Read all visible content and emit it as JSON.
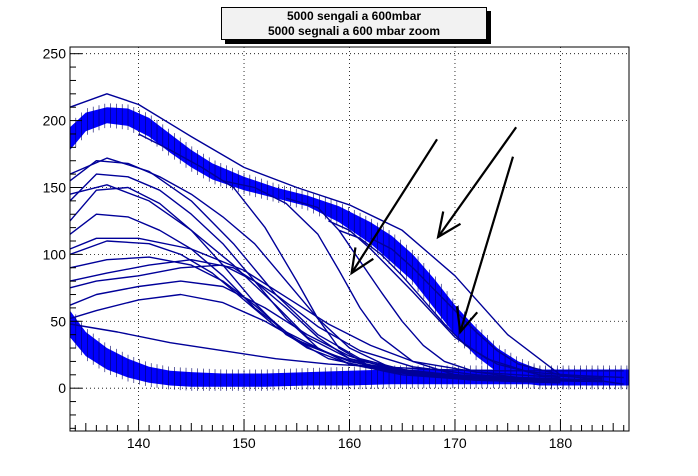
{
  "chart_data": {
    "type": "line",
    "title_lines": [
      "5000 sengali a 600mbar",
      "5000 segnali a 600 mbar zoom"
    ],
    "xlabel": "",
    "ylabel": "",
    "xlim": [
      133.5,
      186.5
    ],
    "ylim": [
      -32,
      255
    ],
    "x_ticks": [
      140,
      150,
      160,
      170,
      180
    ],
    "y_ticks": [
      0,
      50,
      100,
      150,
      200,
      250
    ],
    "grid": true,
    "line_color": "#000099",
    "band_color": "#0000ff",
    "arrow_color": "#000000",
    "bands": [
      {
        "x": [
          133.5,
          135,
          137,
          139,
          141,
          143,
          145,
          147,
          150,
          153,
          156,
          159,
          162,
          164,
          166,
          168,
          170,
          172,
          174,
          176,
          178,
          180,
          182,
          184,
          186.5
        ],
        "upper": [
          195,
          206,
          210,
          209,
          202,
          190,
          178,
          168,
          158,
          150,
          144,
          136,
          124,
          114,
          100,
          82,
          62,
          45,
          30,
          20,
          14,
          12,
          12,
          12,
          12
        ],
        "lower": [
          178,
          192,
          198,
          196,
          188,
          176,
          165,
          156,
          148,
          142,
          136,
          124,
          108,
          94,
          80,
          60,
          40,
          24,
          12,
          4,
          2,
          2,
          2,
          2,
          2
        ]
      },
      {
        "x": [
          133.5,
          135,
          137,
          139,
          141,
          143,
          145,
          148,
          152,
          156,
          160,
          164,
          168,
          172,
          176,
          180,
          186.5
        ],
        "upper": [
          58,
          42,
          30,
          22,
          16,
          13,
          12,
          11,
          11,
          12,
          13,
          14,
          14,
          14,
          14,
          14,
          14
        ],
        "lower": [
          38,
          24,
          14,
          8,
          4,
          2,
          1,
          1,
          1,
          2,
          2,
          3,
          3,
          3,
          3,
          3,
          3
        ]
      }
    ],
    "series": [
      {
        "x": [
          133.5,
          137,
          140,
          145,
          150,
          155,
          160,
          165,
          170,
          175,
          180,
          186
        ],
        "y": [
          210,
          220,
          212,
          188,
          165,
          150,
          137,
          118,
          84,
          40,
          10,
          3
        ]
      },
      {
        "x": [
          133.5,
          136,
          139,
          142,
          145,
          148,
          151,
          154,
          157,
          160,
          164,
          170,
          180
        ],
        "y": [
          155,
          170,
          168,
          158,
          145,
          128,
          108,
          80,
          52,
          30,
          15,
          8,
          4
        ]
      },
      {
        "x": [
          133.5,
          136,
          139,
          142,
          145,
          148,
          151,
          154,
          157,
          160,
          165,
          172,
          180
        ],
        "y": [
          140,
          160,
          158,
          148,
          130,
          108,
          80,
          52,
          30,
          18,
          10,
          6,
          4
        ]
      },
      {
        "x": [
          133.5,
          136,
          139,
          142,
          145,
          148,
          151,
          154,
          158,
          164,
          172,
          180
        ],
        "y": [
          125,
          148,
          150,
          138,
          118,
          92,
          64,
          40,
          22,
          12,
          6,
          4
        ]
      },
      {
        "x": [
          133.5,
          136,
          139,
          142,
          145,
          148,
          151,
          155,
          160,
          166,
          174,
          182
        ],
        "y": [
          115,
          130,
          128,
          118,
          104,
          84,
          60,
          36,
          20,
          12,
          8,
          6
        ]
      },
      {
        "x": [
          133.5,
          137,
          141,
          144,
          147,
          150,
          153,
          156,
          160,
          166,
          174,
          182
        ],
        "y": [
          100,
          110,
          108,
          100,
          86,
          66,
          46,
          30,
          18,
          12,
          8,
          6
        ]
      },
      {
        "x": [
          133.5,
          137,
          141,
          145,
          148,
          151,
          154,
          158,
          162,
          168,
          176,
          184
        ],
        "y": [
          90,
          96,
          98,
          92,
          80,
          62,
          42,
          26,
          16,
          10,
          6,
          5
        ]
      },
      {
        "x": [
          133.5,
          137,
          141,
          145,
          149,
          153,
          157,
          161,
          166,
          172,
          180
        ],
        "y": [
          160,
          172,
          162,
          140,
          108,
          70,
          40,
          22,
          12,
          8,
          5
        ]
      },
      {
        "x": [
          133.5,
          137,
          141,
          145,
          149,
          153,
          156,
          160,
          165,
          172,
          180
        ],
        "y": [
          145,
          152,
          140,
          118,
          92,
          62,
          38,
          22,
          14,
          8,
          5
        ]
      },
      {
        "x": [
          133.5,
          136,
          140,
          145,
          150,
          154,
          158,
          162,
          166,
          172,
          180
        ],
        "y": [
          104,
          112,
          112,
          104,
          88,
          68,
          48,
          32,
          20,
          12,
          8
        ]
      },
      {
        "x": [
          133.5,
          136,
          140,
          144,
          148,
          151,
          154,
          157,
          160,
          164,
          170,
          178
        ],
        "y": [
          75,
          80,
          84,
          90,
          92,
          80,
          60,
          38,
          22,
          12,
          8,
          5
        ]
      },
      {
        "x": [
          133.5,
          136,
          140,
          144,
          148,
          152,
          156,
          160,
          164,
          170,
          178
        ],
        "y": [
          62,
          70,
          76,
          80,
          76,
          60,
          40,
          24,
          14,
          9,
          6
        ]
      },
      {
        "x": [
          133.5,
          136,
          140,
          144,
          148,
          152,
          156,
          160,
          165,
          172,
          180
        ],
        "y": [
          52,
          58,
          66,
          70,
          64,
          50,
          32,
          20,
          12,
          8,
          6
        ]
      },
      {
        "x": [
          133.5,
          137,
          141,
          145,
          149,
          153,
          157,
          161,
          166,
          172,
          180
        ],
        "y": [
          80,
          86,
          92,
          96,
          90,
          70,
          46,
          28,
          16,
          10,
          6
        ]
      },
      {
        "x": [
          140,
          143,
          146,
          149,
          152,
          155,
          157,
          159,
          162,
          166,
          172,
          180
        ],
        "y": [
          190,
          178,
          165,
          150,
          120,
          80,
          52,
          30,
          16,
          10,
          6,
          5
        ]
      },
      {
        "x": [
          148,
          151,
          154,
          157,
          159,
          161,
          163,
          166,
          170,
          176,
          184
        ],
        "y": [
          155,
          150,
          138,
          115,
          88,
          60,
          38,
          20,
          10,
          6,
          5
        ]
      },
      {
        "x": [
          154,
          157,
          159,
          161,
          163,
          165,
          167,
          169,
          172,
          176,
          184
        ],
        "y": [
          142,
          135,
          118,
          95,
          72,
          50,
          32,
          20,
          12,
          8,
          6
        ]
      },
      {
        "x": [
          158,
          160,
          162,
          164,
          166,
          168,
          170,
          173,
          177,
          184
        ],
        "y": [
          125,
          118,
          104,
          88,
          72,
          55,
          38,
          22,
          12,
          8
        ]
      },
      {
        "x": [
          159,
          161,
          163,
          165,
          167,
          169,
          171,
          174,
          178,
          184
        ],
        "y": [
          118,
          112,
          100,
          84,
          66,
          48,
          32,
          18,
          10,
          7
        ]
      },
      {
        "x": [
          162,
          164,
          166,
          168,
          170,
          172,
          174,
          176,
          180,
          186
        ],
        "y": [
          112,
          104,
          90,
          74,
          58,
          42,
          28,
          18,
          10,
          8
        ]
      },
      {
        "x": [
          133.5,
          138,
          143,
          148,
          153,
          158,
          163,
          168,
          174,
          180,
          186
        ],
        "y": [
          48,
          42,
          34,
          28,
          22,
          18,
          16,
          14,
          13,
          13,
          13
        ]
      }
    ],
    "arrows": [
      {
        "from": [
          168.3,
          186
        ],
        "to": [
          160.2,
          86
        ]
      },
      {
        "from": [
          175.8,
          195
        ],
        "to": [
          168.4,
          113
        ]
      },
      {
        "from": [
          175.5,
          173
        ],
        "to": [
          170.5,
          42
        ]
      }
    ]
  }
}
